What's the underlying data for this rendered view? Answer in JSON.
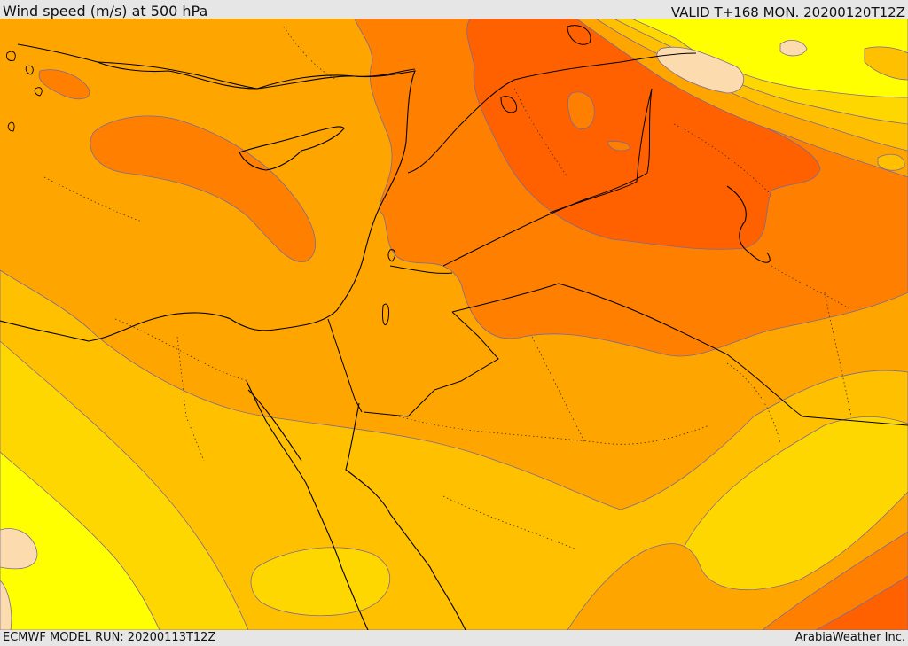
{
  "header": {
    "title": "Wind speed (m/s) at 500 hPa",
    "valid": "VALID T+168 MON. 20200120T12Z"
  },
  "footer": {
    "model_run": "ECMWF MODEL RUN: 20200113T12Z",
    "credit": "ArabiaWeather Inc."
  },
  "palette": {
    "light_yellow": "#ffff00",
    "yellow": "#ffd700",
    "amber": "#ffc000",
    "light_orange": "#ffa500",
    "orange": "#ff8000",
    "dark_orange": "#ff6000",
    "peach": "#fcdcae",
    "contour": "#7a6a9a",
    "border": "#000000",
    "frame": "#e6e6e6"
  }
}
